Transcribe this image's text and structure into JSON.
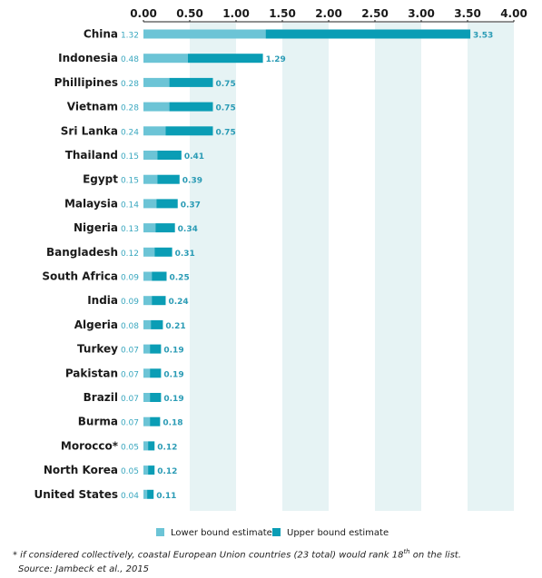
{
  "chart_data": {
    "type": "bar",
    "orientation": "horizontal",
    "categories": [
      "China",
      "Indonesia",
      "Phillipines",
      "Vietnam",
      "Sri Lanka",
      "Thailand",
      "Egypt",
      "Malaysia",
      "Nigeria",
      "Bangladesh",
      "South Africa",
      "India",
      "Algeria",
      "Turkey",
      "Pakistan",
      "Brazil",
      "Burma",
      "Morocco*",
      "North Korea",
      "United States"
    ],
    "series": [
      {
        "name": "Lower bound estimate",
        "color": "#6cc4d6",
        "values": [
          1.32,
          0.48,
          0.28,
          0.28,
          0.24,
          0.15,
          0.15,
          0.14,
          0.13,
          0.12,
          0.09,
          0.09,
          0.08,
          0.07,
          0.07,
          0.07,
          0.07,
          0.05,
          0.05,
          0.04
        ],
        "labels": [
          "1.32",
          "0.48",
          "0.28",
          "0.28",
          "0.24",
          "0.15",
          "0.15",
          "0.14",
          "0.13",
          "0.12",
          "0.09",
          "0.09",
          "0.08",
          "0.07",
          "0.07",
          "0.07",
          "0.07",
          "0.05",
          "0.05",
          "0.04"
        ]
      },
      {
        "name": "Upper bound estimate",
        "color": "#0a9db5",
        "values": [
          3.53,
          1.29,
          0.75,
          0.75,
          0.75,
          0.41,
          0.39,
          0.37,
          0.34,
          0.31,
          0.25,
          0.24,
          0.21,
          0.19,
          0.19,
          0.19,
          0.18,
          0.12,
          0.12,
          0.11
        ],
        "labels": [
          "3.53",
          "1.29",
          "0.75",
          "0.75",
          "0.75",
          "0.41",
          "0.39",
          "0.37",
          "0.34",
          "0.31",
          "0.25",
          "0.24",
          "0.21",
          "0.19",
          "0.19",
          "0.19",
          "0.18",
          "0.12",
          "0.12",
          "0.11"
        ]
      }
    ],
    "xlim": [
      0,
      4
    ],
    "x_ticks": [
      "0.00",
      "0.50",
      "1.00",
      "1.50",
      "2.00",
      "2.50",
      "3.00",
      "3.50",
      "4.00"
    ],
    "tick_position": "top",
    "band_color": "#e6f3f4",
    "legend_position": "bottom"
  },
  "footnote": {
    "text_before": "* if considered collectively, coastal European Union countries (23 total) would rank 18",
    "superscript": "th",
    "text_after": " on the list.",
    "source": "Source: Jambeck et al., 2015"
  }
}
